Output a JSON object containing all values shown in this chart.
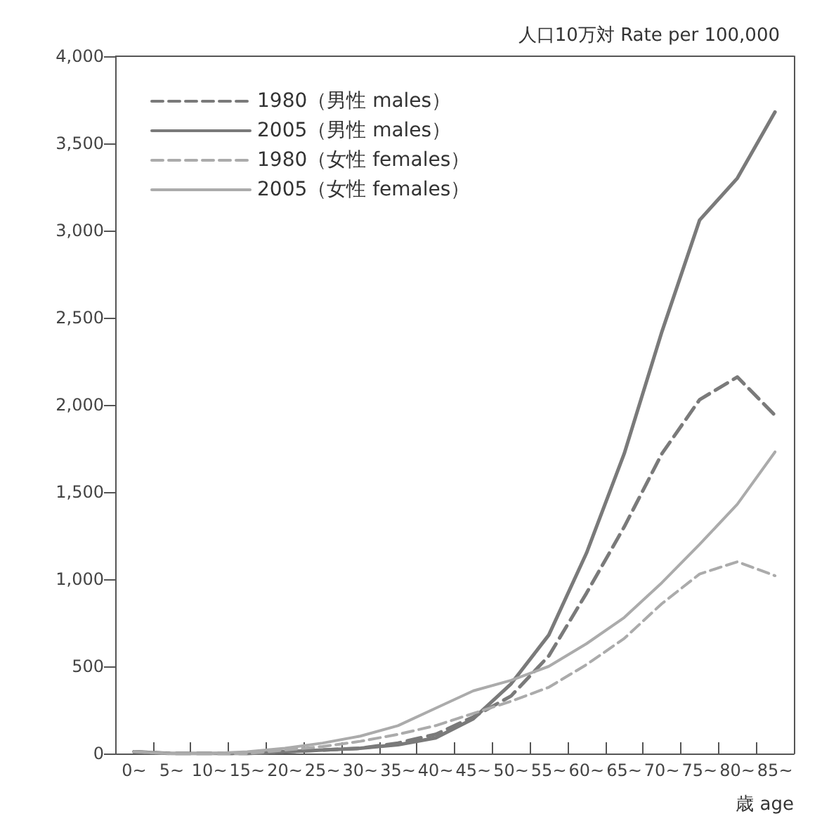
{
  "chart_data": {
    "type": "line",
    "ylabel": "人口10万対 Rate per 100,000",
    "xlabel": "歳 age",
    "categories": [
      "0~",
      "5~",
      "10~",
      "15~",
      "20~",
      "25~",
      "30~",
      "35~",
      "40~",
      "45~",
      "50~",
      "55~",
      "60~",
      "65~",
      "70~",
      "75~",
      "80~",
      "85~"
    ],
    "series": [
      {
        "name": "1980（男性 males）",
        "color": "#7a7a7a",
        "line_style": "dashed",
        "values": [
          10,
          0,
          0,
          0,
          10,
          20,
          30,
          60,
          110,
          210,
          330,
          560,
          920,
          1300,
          1720,
          2030,
          2160,
          1940
        ]
      },
      {
        "name": "2005（男性 males）",
        "color": "#7a7a7a",
        "line_style": "solid",
        "values": [
          10,
          0,
          0,
          0,
          10,
          20,
          30,
          50,
          90,
          200,
          400,
          680,
          1150,
          1720,
          2420,
          3060,
          3300,
          3680
        ]
      },
      {
        "name": "1980（女性 females）",
        "color": "#ababab",
        "line_style": "dashed",
        "values": [
          10,
          0,
          0,
          0,
          20,
          40,
          70,
          110,
          160,
          230,
          300,
          380,
          510,
          660,
          860,
          1030,
          1100,
          1020
        ]
      },
      {
        "name": "2005（女性 females）",
        "color": "#ababab",
        "line_style": "solid",
        "values": [
          10,
          0,
          0,
          10,
          30,
          60,
          100,
          160,
          260,
          360,
          420,
          500,
          630,
          780,
          980,
          1200,
          1430,
          1730
        ]
      }
    ],
    "ylim": [
      0,
      4000
    ],
    "yticks": [
      {
        "value": 0,
        "label": "0"
      },
      {
        "value": 500,
        "label": "500"
      },
      {
        "value": 1000,
        "label": "1,000"
      },
      {
        "value": 1500,
        "label": "1,500"
      },
      {
        "value": 2000,
        "label": "2,000"
      },
      {
        "value": 2500,
        "label": "2,500"
      },
      {
        "value": 3000,
        "label": "3,000"
      },
      {
        "value": 3500,
        "label": "3,500"
      },
      {
        "value": 4000,
        "label": "4,000"
      }
    ],
    "grid": false,
    "legend": "top left",
    "marker": "none"
  }
}
